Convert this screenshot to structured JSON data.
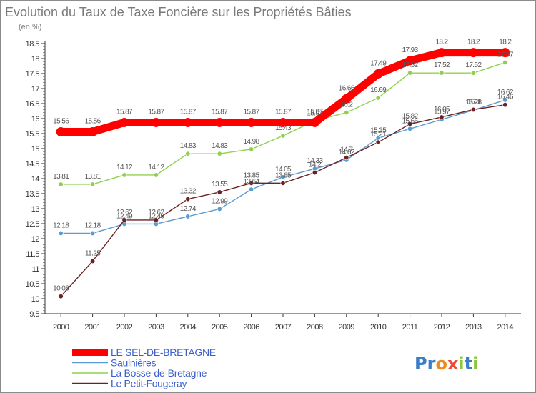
{
  "chart_data": {
    "type": "line",
    "title": "Evolution du Taux de Taxe Foncière sur les Propriétés Bâties",
    "subtitle": "(en %)",
    "xlabel": "",
    "ylabel": "(en %)",
    "ylim": [
      9.5,
      18.5
    ],
    "yticks": [
      "9.5",
      "10",
      "10.5",
      "11",
      "11.5",
      "12",
      "12.5",
      "13",
      "13.5",
      "14",
      "14.5",
      "15",
      "15.5",
      "16",
      "16.5",
      "17",
      "17.5",
      "18",
      "18.5"
    ],
    "categories": [
      "2000",
      "2001",
      "2002",
      "2003",
      "2004",
      "2005",
      "2006",
      "2007",
      "2008",
      "2009",
      "2010",
      "2011",
      "2012",
      "2013",
      "2014"
    ],
    "series": [
      {
        "name": "LE SEL-DE-BRETAGNE",
        "color": "#ff0000",
        "emphasis": true,
        "values": [
          15.56,
          15.56,
          15.87,
          15.87,
          15.87,
          15.87,
          15.87,
          15.87,
          15.87,
          16.66,
          17.49,
          17.93,
          18.2,
          18.2,
          18.2
        ]
      },
      {
        "name": "Saulnières",
        "color": "#5b9bd5",
        "emphasis": false,
        "values": [
          12.18,
          12.18,
          12.49,
          12.49,
          12.74,
          12.99,
          13.64,
          14.05,
          14.33,
          14.62,
          15.35,
          15.66,
          15.97,
          16.28,
          16.62
        ]
      },
      {
        "name": "La Bosse-de-Bretagne",
        "color": "#8fd14f",
        "emphasis": false,
        "values": [
          13.81,
          13.81,
          14.12,
          14.12,
          14.83,
          14.83,
          14.98,
          15.43,
          15.92,
          16.2,
          16.69,
          17.52,
          17.52,
          17.52,
          17.87
        ]
      },
      {
        "name": "Le Petit-Fougeray",
        "color": "#6b2222",
        "emphasis": false,
        "values": [
          10.08,
          11.25,
          12.62,
          12.62,
          13.32,
          13.55,
          13.85,
          13.85,
          14.2,
          14.7,
          15.21,
          15.82,
          16.05,
          16.3,
          16.46
        ]
      }
    ],
    "labels": {
      "LE SEL-DE-BRETAGNE": [
        "15.56",
        "15.56",
        "15.87",
        "15.87",
        "15.87",
        "15.87",
        "15.87",
        "15.87",
        "15.87",
        "16.66",
        "17.49",
        "17.93",
        "18.2",
        "18.2",
        "18.2"
      ],
      "Saulnières": [
        "12.18",
        "12.18",
        "12.49",
        "12.49",
        "12.74",
        "12.99",
        "13.64",
        "14.05",
        "14.33",
        "14.62",
        "15.35",
        "15.66",
        "15.97",
        "16.28",
        "16.62"
      ],
      "La Bosse-de-Bretagne": [
        "13.81",
        "13.81",
        "14.12",
        "14.12",
        "14.83",
        "14.83",
        "14.98",
        "15.43",
        "15.92",
        "16.2",
        "16.69",
        "17.52",
        "17.52",
        "17.52",
        "17.87"
      ],
      "Le Petit-Fougeray": [
        "10.08",
        "11.25",
        "12.62",
        "12.62",
        "13.32",
        "13.55",
        "13.85",
        "13.85",
        "14.2",
        "14.7",
        "15.21",
        "15.82",
        "16.05",
        "16.3",
        "16.46"
      ]
    },
    "grid": false,
    "legend": "bottom-left"
  },
  "logo": {
    "text": "Proxiti",
    "letters": [
      "P",
      "r",
      "o",
      "x",
      "i",
      "t",
      "i"
    ],
    "colors": [
      "#3a7ec7",
      "#3a7ec7",
      "#f08a1c",
      "#ef4b3a",
      "#8cc63f",
      "#3a7ec7",
      "#8cc63f"
    ]
  }
}
